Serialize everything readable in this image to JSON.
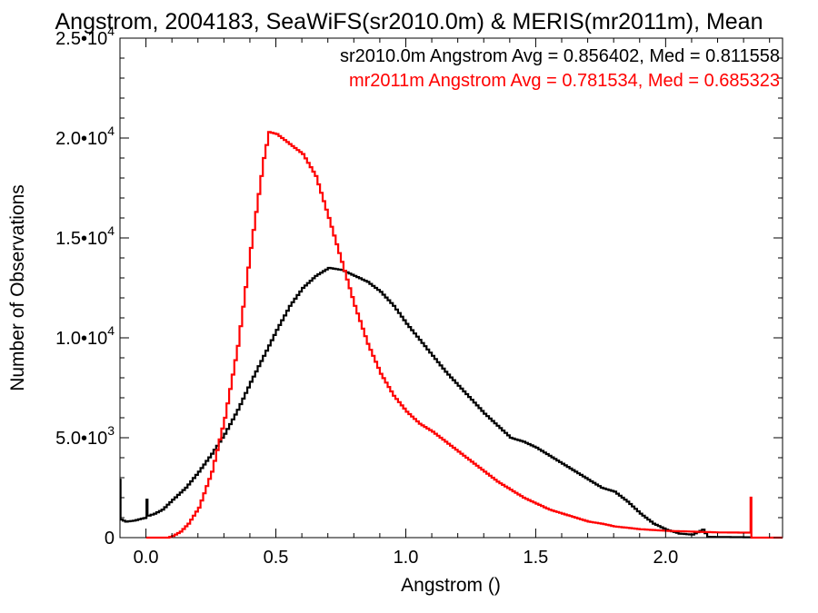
{
  "chart_data": {
    "type": "line",
    "title": "Angstrom, 2004183, SeaWiFS(sr2010.0m) & MERIS(mr2011m), Mean",
    "xlabel": "Angstrom ()",
    "ylabel": "Number of Observations",
    "xlim": [
      -0.1,
      2.45
    ],
    "ylim": [
      0,
      25000
    ],
    "xticks": [
      {
        "value": 0.0,
        "label": "0.0"
      },
      {
        "value": 0.5,
        "label": "0.5"
      },
      {
        "value": 1.0,
        "label": "1.0"
      },
      {
        "value": 1.5,
        "label": "1.5"
      },
      {
        "value": 2.0,
        "label": "2.0"
      }
    ],
    "yticks": [
      {
        "value": 0,
        "mant": "0",
        "exp": ""
      },
      {
        "value": 5000,
        "mant": "5.0•10",
        "exp": "3"
      },
      {
        "value": 10000,
        "mant": "1.0•10",
        "exp": "4"
      },
      {
        "value": 15000,
        "mant": "1.5•10",
        "exp": "4"
      },
      {
        "value": 20000,
        "mant": "2.0•10",
        "exp": "4"
      },
      {
        "value": 25000,
        "mant": "2.5•10",
        "exp": "4"
      }
    ],
    "legend_position": "top-right",
    "grid": false,
    "series": [
      {
        "name": "sr2010.0m",
        "legend_text": "sr2010.0m Angstrom Avg = 0.856402, Med = 0.811558",
        "color": "#000000",
        "points": [
          [
            -0.1,
            2900
          ],
          [
            -0.098,
            900
          ],
          [
            -0.08,
            800
          ],
          [
            -0.05,
            850
          ],
          [
            -0.02,
            950
          ],
          [
            0.0,
            1000
          ],
          [
            0.002,
            1900
          ],
          [
            0.006,
            1100
          ],
          [
            0.03,
            1200
          ],
          [
            0.06,
            1400
          ],
          [
            0.1,
            1900
          ],
          [
            0.15,
            2500
          ],
          [
            0.2,
            3300
          ],
          [
            0.25,
            4200
          ],
          [
            0.3,
            5200
          ],
          [
            0.35,
            6400
          ],
          [
            0.4,
            7800
          ],
          [
            0.45,
            9100
          ],
          [
            0.5,
            10400
          ],
          [
            0.55,
            11600
          ],
          [
            0.6,
            12500
          ],
          [
            0.65,
            13100
          ],
          [
            0.7,
            13500
          ],
          [
            0.75,
            13400
          ],
          [
            0.8,
            13100
          ],
          [
            0.85,
            12800
          ],
          [
            0.9,
            12300
          ],
          [
            0.95,
            11600
          ],
          [
            1.0,
            10700
          ],
          [
            1.05,
            9900
          ],
          [
            1.1,
            9100
          ],
          [
            1.15,
            8300
          ],
          [
            1.2,
            7600
          ],
          [
            1.25,
            6900
          ],
          [
            1.3,
            6200
          ],
          [
            1.35,
            5600
          ],
          [
            1.4,
            5000
          ],
          [
            1.45,
            4800
          ],
          [
            1.5,
            4500
          ],
          [
            1.55,
            4100
          ],
          [
            1.6,
            3700
          ],
          [
            1.65,
            3300
          ],
          [
            1.7,
            2900
          ],
          [
            1.75,
            2500
          ],
          [
            1.8,
            2300
          ],
          [
            1.85,
            1800
          ],
          [
            1.9,
            1200
          ],
          [
            1.95,
            700
          ],
          [
            2.0,
            400
          ],
          [
            2.05,
            200
          ],
          [
            2.1,
            150
          ],
          [
            2.14,
            400
          ],
          [
            2.16,
            40
          ],
          [
            2.2,
            30
          ],
          [
            2.3,
            20
          ],
          [
            2.33,
            10
          ]
        ]
      },
      {
        "name": "mr2011m",
        "legend_text": "mr2011m Angstrom Avg = 0.781534, Med = 0.685323",
        "color": "#ff0000",
        "points": [
          [
            0.0,
            0
          ],
          [
            0.08,
            0
          ],
          [
            0.1,
            80
          ],
          [
            0.13,
            300
          ],
          [
            0.16,
            700
          ],
          [
            0.2,
            1500
          ],
          [
            0.25,
            3300
          ],
          [
            0.3,
            6000
          ],
          [
            0.35,
            9600
          ],
          [
            0.4,
            14500
          ],
          [
            0.45,
            19000
          ],
          [
            0.47,
            20300
          ],
          [
            0.5,
            20200
          ],
          [
            0.55,
            19700
          ],
          [
            0.6,
            19200
          ],
          [
            0.65,
            18100
          ],
          [
            0.7,
            16000
          ],
          [
            0.75,
            13800
          ],
          [
            0.8,
            11600
          ],
          [
            0.85,
            9700
          ],
          [
            0.9,
            8200
          ],
          [
            0.95,
            7100
          ],
          [
            1.0,
            6300
          ],
          [
            1.05,
            5700
          ],
          [
            1.1,
            5300
          ],
          [
            1.15,
            4800
          ],
          [
            1.2,
            4300
          ],
          [
            1.25,
            3800
          ],
          [
            1.3,
            3300
          ],
          [
            1.35,
            2800
          ],
          [
            1.4,
            2400
          ],
          [
            1.45,
            2000
          ],
          [
            1.5,
            1700
          ],
          [
            1.55,
            1400
          ],
          [
            1.6,
            1200
          ],
          [
            1.65,
            1000
          ],
          [
            1.7,
            800
          ],
          [
            1.75,
            700
          ],
          [
            1.8,
            560
          ],
          [
            1.9,
            420
          ],
          [
            2.0,
            340
          ],
          [
            2.1,
            300
          ],
          [
            2.2,
            260
          ],
          [
            2.3,
            250
          ],
          [
            2.325,
            250
          ],
          [
            2.327,
            2000
          ],
          [
            2.33,
            0
          ],
          [
            2.45,
            0
          ]
        ]
      }
    ]
  }
}
